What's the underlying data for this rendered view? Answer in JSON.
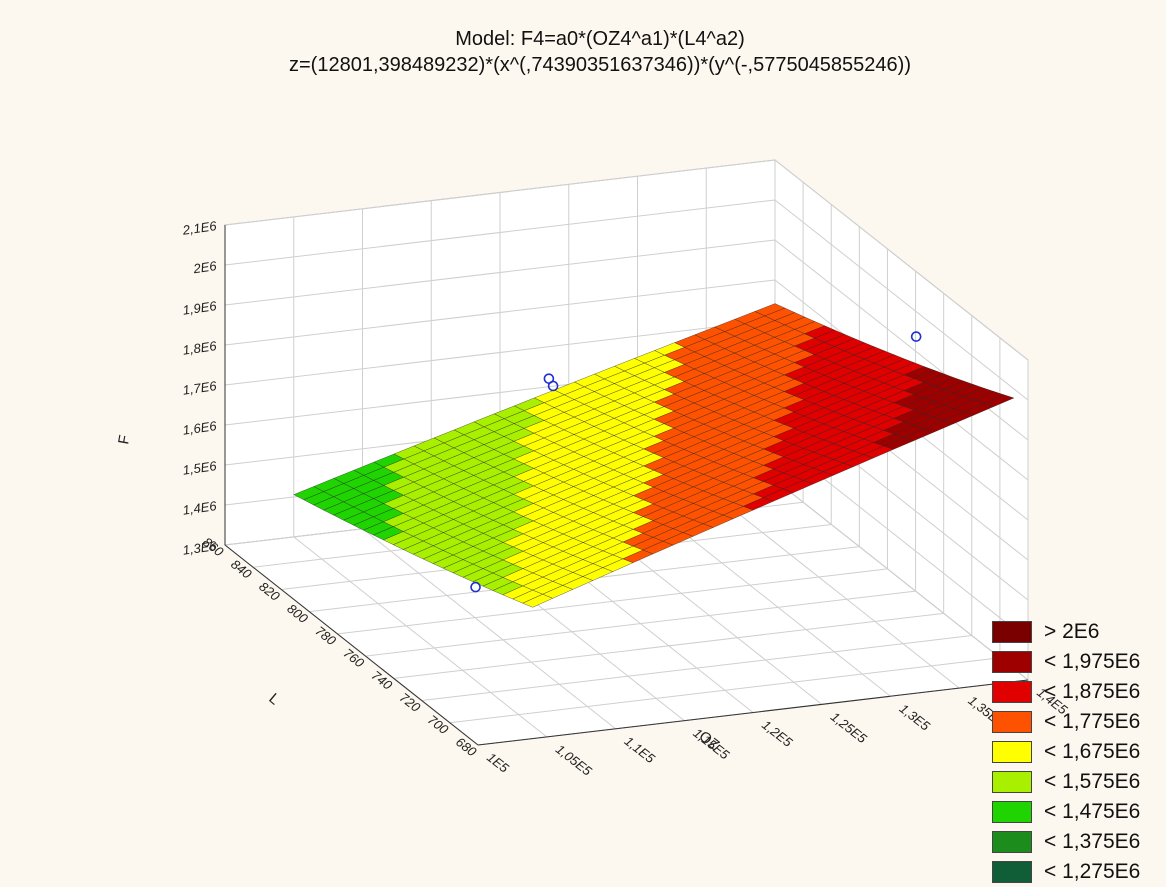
{
  "chart_data": {
    "type": "surface3d",
    "title": "Model: F4=a0*(OZ4^a1)*(L4^a2)",
    "subtitle": "z=(12801,398489232)*(x^(,74390351637346))*(y^(-,5775045855246))",
    "model": {
      "a0": 12801.398489232,
      "a1": 0.74390351637346,
      "a2": -0.5775045855246
    },
    "xlabel": "OZ",
    "ylabel": "L",
    "zlabel": "F",
    "x_ticks": [
      "1E5",
      "1,05E5",
      "1,1E5",
      "1,15E5",
      "1,2E5",
      "1,25E5",
      "1,3E5",
      "1,35E5",
      "1,4E5"
    ],
    "x_range": [
      100000,
      140000
    ],
    "y_ticks": [
      "860",
      "840",
      "820",
      "800",
      "780",
      "760",
      "740",
      "720",
      "700",
      "680"
    ],
    "y_range": [
      680,
      860
    ],
    "z_ticks": [
      "1,3E6",
      "1,4E6",
      "1,5E6",
      "1,6E6",
      "1,7E6",
      "1,8E6",
      "1,9E6",
      "2E6",
      "2,1E6"
    ],
    "z_range": [
      1300000,
      2100000
    ],
    "surface_x_range": [
      105000,
      140000
    ],
    "surface_y_range": [
      690,
      860
    ],
    "points": [
      {
        "x": 138000,
        "y": 740,
        "z": 2000000
      },
      {
        "x": 121000,
        "y": 835,
        "z": 1700000
      },
      {
        "x": 121000,
        "y": 832,
        "z": 1690000
      },
      {
        "x": 108000,
        "y": 760,
        "z": 1440000
      }
    ],
    "legend": [
      {
        "label": "> 2E6",
        "color": "#7a0000"
      },
      {
        "label": "< 1,975E6",
        "color": "#9e0000"
      },
      {
        "label": "< 1,875E6",
        "color": "#e00000"
      },
      {
        "label": "< 1,775E6",
        "color": "#ff5200"
      },
      {
        "label": "< 1,675E6",
        "color": "#ffff00"
      },
      {
        "label": "< 1,575E6",
        "color": "#a8f000"
      },
      {
        "label": "< 1,475E6",
        "color": "#1fd400"
      },
      {
        "label": "< 1,375E6",
        "color": "#1c8c1c"
      },
      {
        "label": "< 1,275E6",
        "color": "#0f5e38"
      }
    ],
    "color_levels": [
      1275000,
      1375000,
      1475000,
      1575000,
      1675000,
      1775000,
      1875000,
      1975000,
      2000000
    ],
    "grid": true,
    "legend_position": "bottom-right"
  }
}
